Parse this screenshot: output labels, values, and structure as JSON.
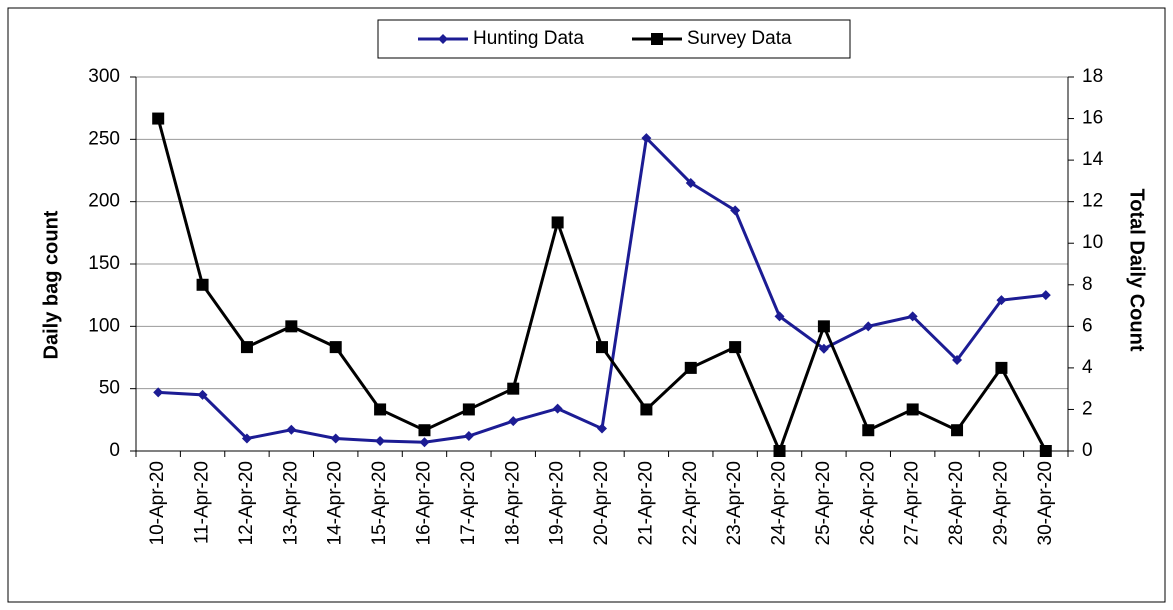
{
  "chart_data": {
    "type": "line",
    "categories": [
      "10-Apr-20",
      "11-Apr-20",
      "12-Apr-20",
      "13-Apr-20",
      "14-Apr-20",
      "15-Apr-20",
      "16-Apr-20",
      "17-Apr-20",
      "18-Apr-20",
      "19-Apr-20",
      "20-Apr-20",
      "21-Apr-20",
      "22-Apr-20",
      "23-Apr-20",
      "24-Apr-20",
      "25-Apr-20",
      "26-Apr-20",
      "27-Apr-20",
      "28-Apr-20",
      "29-Apr-20",
      "30-Apr-20"
    ],
    "series": [
      {
        "name": "Hunting Data",
        "color": "#1c1c94",
        "values": [
          47,
          45,
          10,
          17,
          10,
          8,
          7,
          12,
          24,
          34,
          18,
          251,
          215,
          193,
          108,
          82,
          100,
          108,
          73,
          121,
          125
        ]
      },
      {
        "name": "Survey Data",
        "color": "#000000",
        "axis": "y2",
        "values": [
          16,
          8,
          5,
          6,
          5,
          2,
          1,
          2,
          3,
          11,
          5,
          2,
          4,
          5,
          0,
          6,
          1,
          2,
          1,
          4,
          0
        ]
      }
    ],
    "ylabel": "Daily  bag count",
    "y2label": "Total Daily Count",
    "ylim": [
      0,
      300
    ],
    "yticks": [
      0,
      50,
      100,
      150,
      200,
      250,
      300
    ],
    "y2lim": [
      0,
      18
    ],
    "y2ticks": [
      0,
      2,
      4,
      6,
      8,
      10,
      12,
      14,
      16,
      18
    ],
    "grid": true,
    "legend": "top"
  }
}
